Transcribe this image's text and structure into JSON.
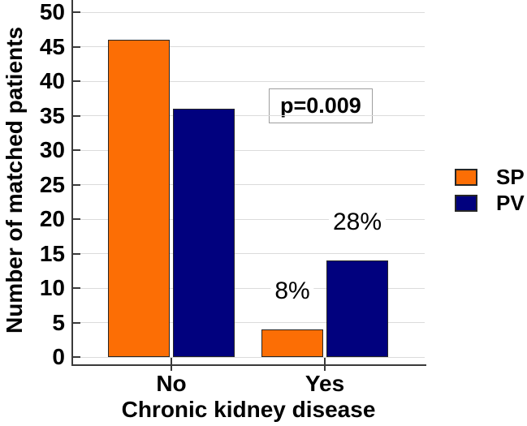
{
  "chart_data": {
    "type": "bar",
    "title": "",
    "categories": [
      "No",
      "Yes"
    ],
    "series": [
      {
        "name": "SP",
        "color": "#FC6E05",
        "values": [
          46,
          4
        ],
        "bar_labels": [
          "",
          "8%"
        ]
      },
      {
        "name": "PV",
        "color": "#01017E",
        "values": [
          36,
          14
        ],
        "bar_labels": [
          "",
          "28%"
        ]
      }
    ],
    "xlabel": "Chronic kidney disease",
    "ylabel": "Number of matched patients",
    "ylim": [
      0,
      50
    ],
    "ytick_step": 5,
    "annotation": "p=0.009",
    "legend_position": "right",
    "grid": "horizontal"
  },
  "colors": {
    "sp_orange": "#FC6E05",
    "pv_navy": "#01017E",
    "gridline": "#DBDBDB",
    "axis": "#3A3A3A",
    "bar_border": "#262626",
    "pbox_border": "#9E9E9E",
    "background": "#FFFFFF",
    "text": "#000000"
  }
}
